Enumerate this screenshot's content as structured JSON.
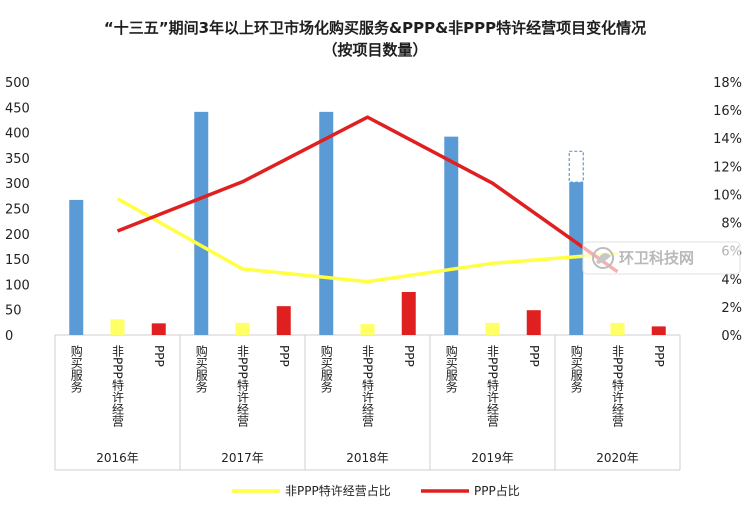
{
  "chart_data": {
    "type": "bar",
    "title": "“十三五”期间3年以上环卫市场化购买服务&PPP&非PPP特许经营项目变化情况（按项目数量）",
    "title_lines": [
      "“十三五”期间3年以上环卫市场化购买服务&PPP&非PPP特许经营项目变化情况",
      "（按项目数量）"
    ],
    "groups": [
      "2016年",
      "2017年",
      "2018年",
      "2019年",
      "2020年"
    ],
    "subcategories": [
      "购买服务",
      "非PPP特许经营",
      "PPP"
    ],
    "series": [
      {
        "name": "购买服务",
        "color": "#5B9BD5",
        "values": [
          267,
          441,
          441,
          392,
          302
        ]
      },
      {
        "name": "非PPP特许经营",
        "color": "#FFFF66",
        "values": [
          31,
          24,
          22,
          24,
          24
        ]
      },
      {
        "name": "PPP",
        "color": "#E02020",
        "values": [
          23,
          57,
          85,
          49,
          17
        ]
      }
    ],
    "dashed_extension_2020": 363,
    "lines": [
      {
        "name": "非PPP特许经营占比",
        "color": "#FFFF44",
        "values": [
          9.7,
          4.7,
          3.8,
          5.1,
          5.8
        ]
      },
      {
        "name": "PPP占比",
        "color": "#E02020",
        "values": [
          7.4,
          10.9,
          15.5,
          10.8,
          4.5
        ]
      }
    ],
    "y_left": {
      "min": 0,
      "max": 500,
      "step": 50,
      "ticks": [
        "0",
        "50",
        "100",
        "150",
        "200",
        "250",
        "300",
        "350",
        "400",
        "450",
        "500"
      ]
    },
    "y_right": {
      "min": 0,
      "max": 18,
      "step": 2,
      "ticks": [
        "0%",
        "2%",
        "4%",
        "6%",
        "8%",
        "10%",
        "12%",
        "14%",
        "16%",
        "18%"
      ]
    },
    "legend": {
      "position": "bottom",
      "entries": [
        "非PPP特许经营占比",
        "PPP占比"
      ]
    },
    "grid": false
  },
  "watermark": {
    "text": "环卫科技网"
  }
}
